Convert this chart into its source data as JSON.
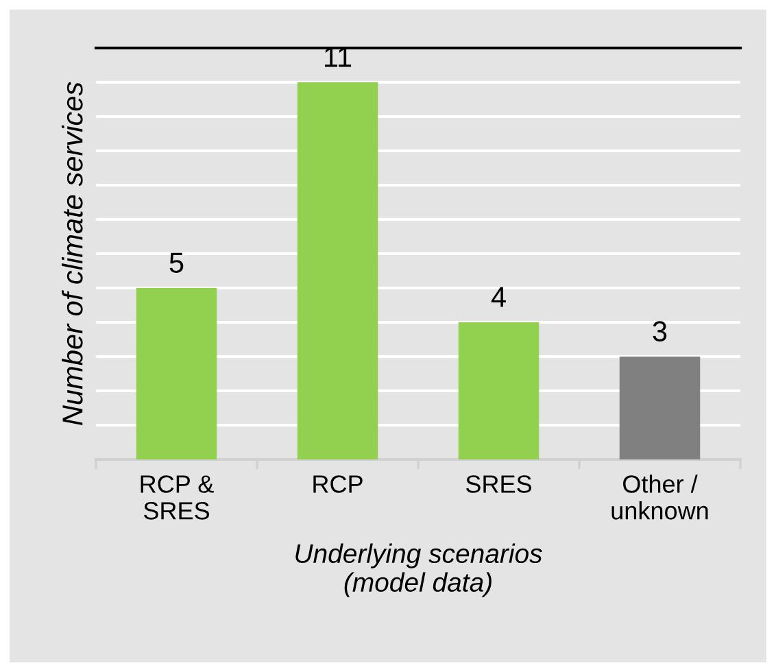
{
  "chart_data": {
    "type": "bar",
    "categories": [
      "RCP &\nSRES",
      "RCP",
      "SRES",
      "Other /\nunknown"
    ],
    "values": [
      5,
      11,
      4,
      3
    ],
    "colors": [
      "#92d050",
      "#92d050",
      "#92d050",
      "#808080"
    ],
    "ylabel": "Number of climate services",
    "xlabel": "Underlying scenarios\n(model data)",
    "ylim": [
      0,
      12
    ],
    "yticks": [
      {
        "value": 0,
        "label": null
      },
      {
        "value": 1,
        "label": null
      },
      {
        "value": 2,
        "label": null
      },
      {
        "value": 3,
        "label": null
      },
      {
        "value": 4,
        "label": null
      },
      {
        "value": 5,
        "label": null
      },
      {
        "value": 6,
        "label": null
      },
      {
        "value": 7,
        "label": null
      },
      {
        "value": 8,
        "label": null
      },
      {
        "value": 9,
        "label": null
      },
      {
        "value": 10,
        "label": null
      },
      {
        "value": 11,
        "label": null
      },
      {
        "value": 12,
        "label": null
      }
    ],
    "tick_labels": "x",
    "grid": "y",
    "data_labels": true,
    "legend": false
  }
}
